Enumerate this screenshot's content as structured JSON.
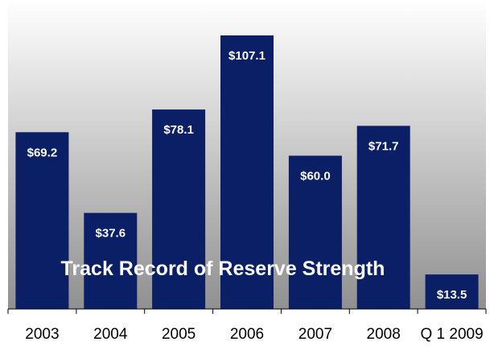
{
  "chart_data": {
    "type": "bar",
    "title": "Track Record of Reserve Strength",
    "categories": [
      "2003",
      "2004",
      "2005",
      "2006",
      "2007",
      "2008",
      "Q 1 2009"
    ],
    "values": [
      69.2,
      37.6,
      78.1,
      107.1,
      60.0,
      71.7,
      13.5
    ],
    "data_labels": [
      "$69.2",
      "$37.6",
      "$78.1",
      "$107.1",
      "$60.0",
      "$71.7",
      "$13.5"
    ],
    "xlabel": "",
    "ylabel": "",
    "ylim": [
      0,
      120
    ],
    "grid": false,
    "legend": "none"
  },
  "colors": {
    "bar": "#0b1f66",
    "bar_label": "#ffffff",
    "title": "#ffffff",
    "background_top": "#ffffff",
    "background_bottom": "#909090",
    "axis": "#000000"
  }
}
